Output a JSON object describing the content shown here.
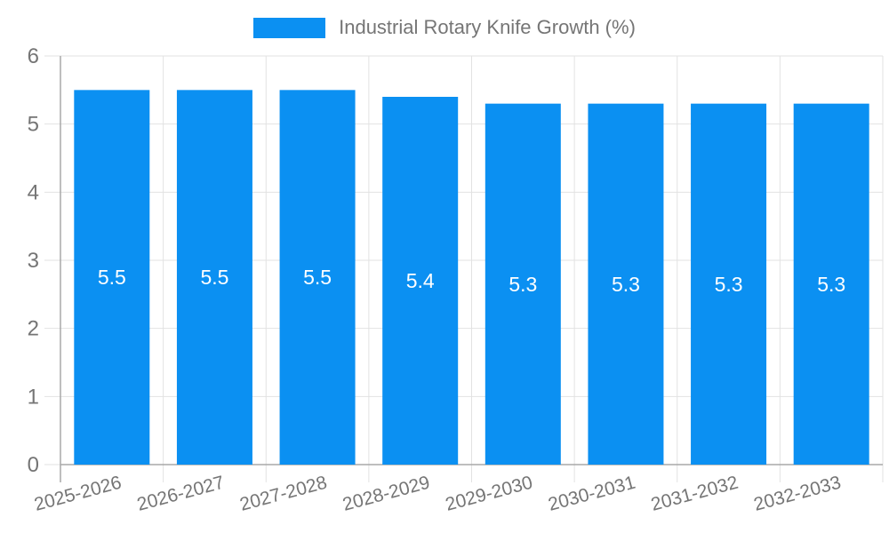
{
  "legend": {
    "label": "Industrial Rotary Knife Growth (%)",
    "swatch_color": "#0b90f2"
  },
  "chart_data": {
    "type": "bar",
    "title": "Industrial Rotary Knife Growth (%)",
    "categories": [
      "2025-2026",
      "2026-2027",
      "2027-2028",
      "2028-2029",
      "2029-2030",
      "2030-2031",
      "2031-2032",
      "2032-2033"
    ],
    "values": [
      5.5,
      5.5,
      5.5,
      5.4,
      5.3,
      5.3,
      5.3,
      5.3
    ],
    "value_labels": [
      "5.5",
      "5.5",
      "5.5",
      "5.4",
      "5.3",
      "5.3",
      "5.3",
      "5.3"
    ],
    "yticks": [
      0,
      1,
      2,
      3,
      4,
      5,
      6
    ],
    "ylim": [
      0,
      6
    ],
    "xlabel": "",
    "ylabel": "",
    "grid": true,
    "legend_position": "top",
    "bar_color": "#0b90f2",
    "value_label_color": "#ffffff",
    "axis_text_color": "#757575",
    "grid_color": "#e2e2e2",
    "axis_line_color": "#a8a8a8"
  }
}
